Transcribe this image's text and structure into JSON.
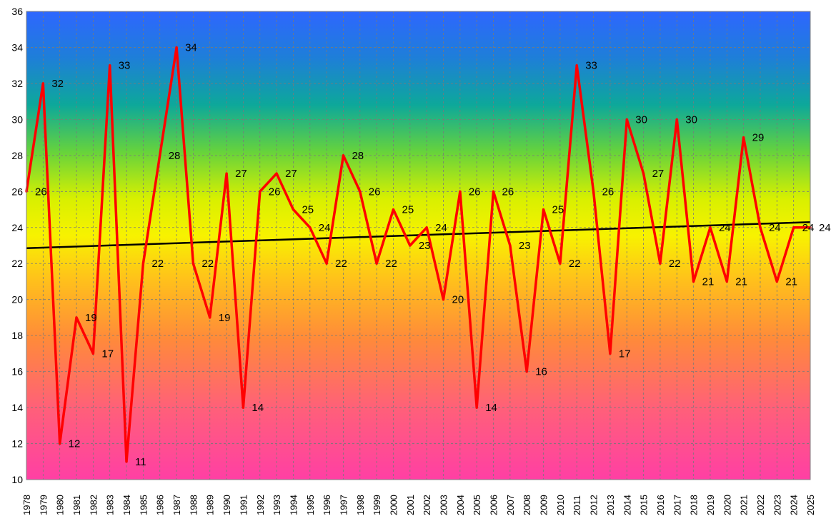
{
  "chart_data": {
    "type": "line",
    "title": "",
    "xlabel": "",
    "ylabel": "",
    "ylim": [
      10,
      36
    ],
    "y_ticks": [
      10,
      12,
      14,
      16,
      18,
      20,
      22,
      24,
      26,
      28,
      30,
      32,
      34,
      36
    ],
    "grid": true,
    "legend": "none",
    "background": "vertical gradient from magenta at bottom through orange and yellow to blue at top",
    "categories": [
      "1978",
      "1979",
      "1980",
      "1981",
      "1982",
      "1983",
      "1984",
      "1985",
      "1986",
      "1987",
      "1988",
      "1989",
      "1990",
      "1991",
      "1992",
      "1993",
      "1994",
      "1995",
      "1996",
      "1997",
      "1998",
      "1999",
      "2000",
      "2001",
      "2002",
      "2003",
      "2004",
      "2005",
      "2006",
      "2007",
      "2008",
      "2009",
      "2010",
      "2011",
      "2012",
      "2013",
      "2014",
      "2015",
      "2016",
      "2017",
      "2018",
      "2019",
      "2020",
      "2021",
      "2022",
      "2023",
      "2024",
      "2025"
    ],
    "series": [
      {
        "values": [
          26,
          32,
          12,
          19,
          17,
          33,
          11,
          22,
          28,
          34,
          22,
          19,
          27,
          14,
          26,
          27,
          25,
          24,
          22,
          28,
          26,
          22,
          25,
          23,
          24,
          20,
          26,
          14,
          26,
          23,
          16,
          25,
          22,
          33,
          26,
          17,
          30,
          27,
          22,
          30,
          21,
          24,
          21,
          29,
          24,
          21,
          24,
          24
        ],
        "color": "#FF0000"
      }
    ],
    "trendline": {
      "start": 22.85,
      "end": 24.3,
      "color": "#000000"
    }
  }
}
